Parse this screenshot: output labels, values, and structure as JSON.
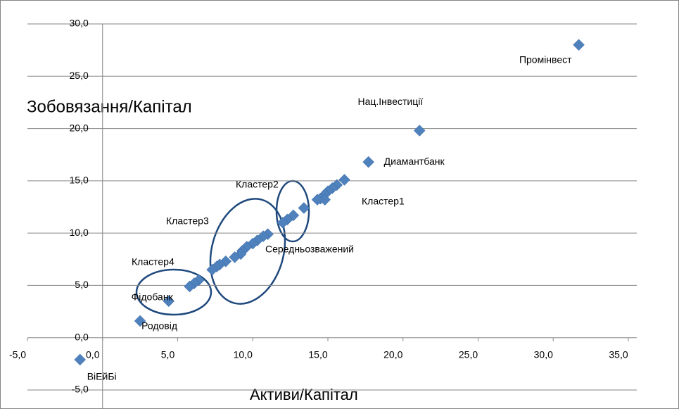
{
  "chart_data": {
    "type": "scatter",
    "xlabel": "Активи/Капітал",
    "ylabel": "Зобовязання/Капітал",
    "color": "#4f81bd",
    "grid": true,
    "xlim": [
      -5,
      35
    ],
    "xticks": [
      {
        "value": -5,
        "label": "-5,0"
      },
      {
        "value": 0,
        "label": "0,0"
      },
      {
        "value": 5,
        "label": "5,0"
      },
      {
        "value": 10,
        "label": "10,0"
      },
      {
        "value": 15,
        "label": "15,0"
      },
      {
        "value": 20,
        "label": "20,0"
      },
      {
        "value": 25,
        "label": "25,0"
      },
      {
        "value": 30,
        "label": "30,0"
      },
      {
        "value": 35,
        "label": "35,0"
      }
    ],
    "ylim": [
      -5,
      30
    ],
    "yticks": [
      {
        "value": -5,
        "label": "-5,0"
      },
      {
        "value": 0,
        "label": "0,0"
      },
      {
        "value": 5,
        "label": "5,0"
      },
      {
        "value": 10,
        "label": "10,0"
      },
      {
        "value": 15,
        "label": "15,0"
      },
      {
        "value": 20,
        "label": "20,0"
      },
      {
        "value": 25,
        "label": "25,0"
      },
      {
        "value": 30,
        "label": "30,0"
      }
    ],
    "x": [
      31.7,
      21.1,
      17.7,
      4.4,
      2.5,
      -1.5,
      16.1,
      15.6,
      15.3,
      15.0,
      14.8,
      14.5,
      14.8,
      14.3,
      13.4,
      12.7,
      12.3,
      12.0,
      11.0,
      10.7,
      10.3,
      10.0,
      9.6,
      9.3,
      9.2,
      8.8,
      8.2,
      7.8,
      7.6,
      7.3,
      6.4,
      6.1,
      5.8
    ],
    "values": [
      28.0,
      19.8,
      16.8,
      3.5,
      1.6,
      -2.1,
      15.1,
      14.6,
      14.3,
      14.0,
      13.7,
      13.3,
      13.2,
      13.2,
      12.4,
      11.7,
      11.3,
      11.0,
      9.9,
      9.7,
      9.3,
      9.0,
      8.7,
      8.3,
      8.0,
      7.7,
      7.3,
      7.0,
      6.8,
      6.5,
      5.5,
      5.2,
      4.9
    ],
    "point_labels": [
      "Промінвест",
      "Нац.Інвестиції",
      "Диамантбанк",
      "Фідобанк",
      "Родовід",
      "ВіЕйБі",
      null,
      null,
      null,
      null,
      null,
      null,
      null,
      null,
      null,
      null,
      null,
      null,
      null,
      null,
      null,
      null,
      null,
      null,
      null,
      null,
      null,
      null,
      null,
      null,
      null,
      null,
      null
    ],
    "annotations": [
      "Кластер1",
      "Кластер2",
      "Кластер3",
      "Кластер4",
      "Середньозважений"
    ]
  }
}
